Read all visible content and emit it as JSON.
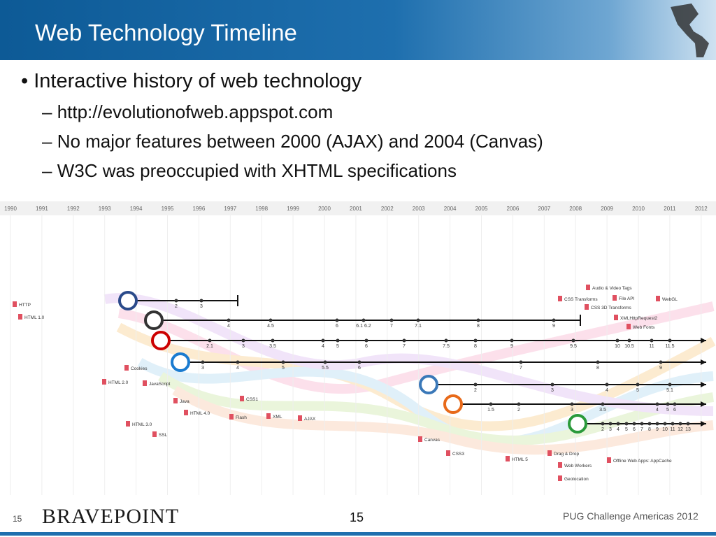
{
  "header": {
    "title": "Web Technology Timeline"
  },
  "bullets": [
    {
      "text": "Interactive history of web technology",
      "sub": [
        "http://evolutionofweb.appspot.com",
        "No major features between 2000 (AJAX) and 2004 (Canvas)",
        "W3C was preoccupied with XHTML specifications"
      ]
    }
  ],
  "timeline": {
    "years": [
      "1990",
      "1991",
      "1992",
      "1993",
      "1994",
      "1995",
      "1996",
      "1997",
      "1998",
      "1999",
      "2000",
      "2001",
      "2002",
      "2003",
      "2004",
      "2005",
      "2006",
      "2007",
      "2008",
      "2009",
      "2010",
      "2011",
      "2012"
    ],
    "browsers": [
      {
        "versions": [
          "2",
          "3"
        ]
      },
      {
        "versions": [
          "4",
          "4.5",
          "6",
          "6.1 6.2",
          "7",
          "7.1",
          "8",
          "9"
        ]
      },
      {
        "versions": [
          "2.1",
          "3",
          "3.5",
          "4",
          "5",
          "6",
          "7",
          "7.5",
          "8",
          "9",
          "9.5",
          "10",
          "10.5",
          "11",
          "11.5"
        ]
      },
      {
        "versions": [
          "3",
          "4",
          "5",
          "5.5",
          "6",
          "7",
          "8",
          "9"
        ]
      },
      {
        "versions": [
          "2",
          "3",
          "4",
          "5",
          "5.1"
        ]
      },
      {
        "versions": [
          "1.5",
          "2",
          "3",
          "3.5",
          "4",
          "5",
          "6"
        ]
      },
      {
        "versions": [
          "2",
          "3",
          "4",
          "5",
          "6",
          "7",
          "8",
          "9",
          "10",
          "11",
          "12",
          "13"
        ]
      }
    ],
    "features": [
      "HTTP",
      "HTML 1.0",
      "Cookies",
      "HTML 2.0",
      "JavaScript",
      "Java",
      "CSS1",
      "HTML 4.0",
      "Flash",
      "XML",
      "AJAX",
      "HTML 3.0",
      "SSL",
      "Canvas",
      "CSS3",
      "HTML 5",
      "Drag & Drop",
      "Web Workers",
      "Geolocation",
      "Audio & Video Tags",
      "CSS Transforms",
      "File API",
      "WebGL",
      "CSS 3D Transforms",
      "XMLHttpRequest2",
      "Web Fonts",
      "Offline Web Apps: AppCache"
    ]
  },
  "footer": {
    "slide_number": "15",
    "logo": "BRAVEPOINT",
    "page_number": "15",
    "event": "PUG Challenge Americas 2012"
  }
}
